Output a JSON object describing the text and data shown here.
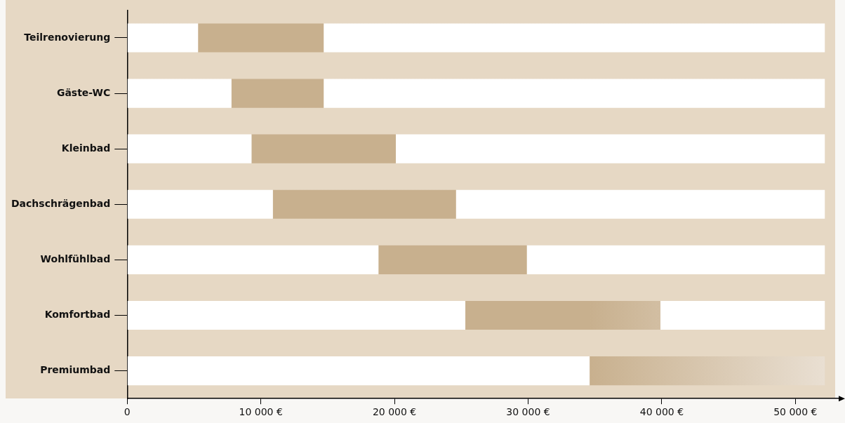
{
  "chart_data": {
    "type": "bar",
    "orientation": "horizontal",
    "stacked": true,
    "categories": [
      "Teilrenovierung",
      "Gäste-WC",
      "Kleinbad",
      "Dachschrägenbad",
      "Wohlfühlbad",
      "Komfortbad",
      "Premiumbad"
    ],
    "series": [
      {
        "color": "#ffffff",
        "values": [
          5300,
          7800,
          9300,
          10900,
          18800,
          25300,
          34600
        ]
      },
      {
        "color": "#c8b08e",
        "values": [
          9400,
          6900,
          10800,
          13700,
          11100,
          14600,
          17600
        ]
      },
      {
        "color": "#ffffff",
        "values": [
          37500,
          37500,
          32100,
          27600,
          22300,
          12300,
          null
        ]
      }
    ],
    "xlim": [
      0,
      53500
    ],
    "xticks": [
      0,
      {
        "value": 10000,
        "label": "10 000 €"
      },
      {
        "value": 20000,
        "label": "20 000 €"
      },
      {
        "value": 30000,
        "label": "30 000 €"
      },
      {
        "value": 40000,
        "label": "40 000 €"
      },
      {
        "value": 50000,
        "label": "50 000 €"
      }
    ],
    "grid": false,
    "legend": false
  }
}
